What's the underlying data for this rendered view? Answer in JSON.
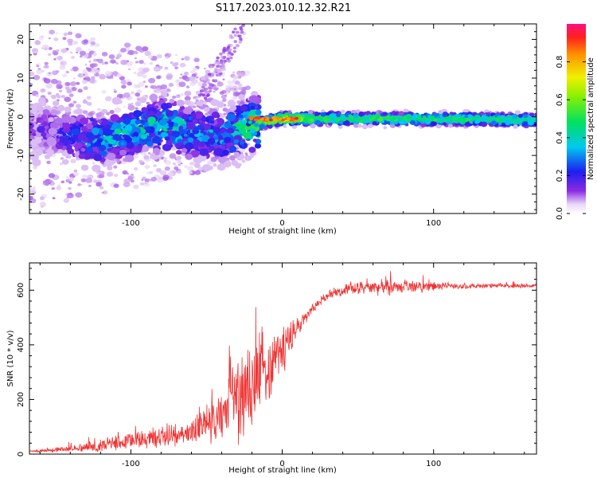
{
  "title": "S117.2023.010.12.32.R21",
  "chart_data": [
    {
      "type": "heatmap",
      "xlabel": "Height of straight line (km)",
      "ylabel": "Frequency (Hz)",
      "xlim": [
        -167,
        168
      ],
      "ylim": [
        -25,
        24
      ],
      "xticks": [
        -100,
        0,
        100
      ],
      "xtick_labels": [
        "-100",
        "0",
        "100"
      ],
      "yticks": [
        -20,
        -10,
        0,
        10,
        20
      ],
      "ytick_labels": [
        "-20",
        "-10",
        "0",
        "10",
        "20"
      ],
      "colorbar": {
        "label": "Normalized spectral amplitude",
        "range": [
          0,
          1
        ],
        "ticks": [
          0.0,
          0.2,
          0.4,
          0.6,
          0.8
        ],
        "tick_labels": [
          "0.0",
          "0.2",
          "0.4",
          "0.6",
          "0.8"
        ],
        "colormap": "rainbow (purple-blue-cyan-green-yellow-red-magenta)"
      },
      "description_points": {
        "x": [
          -160,
          -140,
          -120,
          -100,
          -80,
          -60,
          -40,
          -20,
          0,
          20,
          40,
          60,
          80,
          100,
          120,
          140,
          160
        ],
        "peak_frequency": [
          -3,
          -5,
          -6,
          -4,
          -2,
          -4,
          -5,
          -2,
          -0.5,
          -0.5,
          -0.5,
          -0.5,
          -0.6,
          -0.6,
          -0.6,
          -0.7,
          -0.8
        ],
        "peak_amplitude": [
          0.12,
          0.2,
          0.3,
          0.35,
          0.38,
          0.3,
          0.3,
          0.45,
          0.7,
          0.55,
          0.5,
          0.5,
          0.5,
          0.48,
          0.48,
          0.47,
          0.47
        ]
      },
      "grid": false
    },
    {
      "type": "line",
      "xlabel": "Height of straight line (km)",
      "ylabel": "SNR (10 * v/v)",
      "xlim": [
        -167,
        168
      ],
      "ylim": [
        0,
        700
      ],
      "xticks": [
        -100,
        0,
        100
      ],
      "xtick_labels": [
        "-100",
        "0",
        "100"
      ],
      "yticks": [
        0,
        200,
        400,
        600
      ],
      "ytick_labels": [
        "0",
        "200",
        "400",
        "600"
      ],
      "series": [
        {
          "color": "#ee3333",
          "x": [
            -167,
            -150,
            -130,
            -110,
            -90,
            -70,
            -60,
            -50,
            -45,
            -40,
            -35,
            -30,
            -25,
            -20,
            -15,
            -10,
            -5,
            0,
            5,
            10,
            15,
            20,
            25,
            30,
            35,
            40,
            45,
            50,
            60,
            70,
            80,
            90,
            100,
            110,
            120,
            130,
            140,
            150,
            160,
            168
          ],
          "y": [
            10,
            15,
            25,
            40,
            55,
            70,
            85,
            110,
            130,
            150,
            170,
            200,
            230,
            260,
            290,
            320,
            350,
            380,
            420,
            460,
            500,
            530,
            560,
            580,
            595,
            600,
            605,
            608,
            610,
            612,
            612,
            613,
            614,
            615,
            615,
            615,
            616,
            616,
            616,
            617
          ],
          "noise": [
            5,
            10,
            20,
            30,
            40,
            50,
            60,
            80,
            100,
            130,
            150,
            180,
            200,
            210,
            200,
            170,
            140,
            110,
            80,
            50,
            30,
            25,
            20,
            15,
            20,
            25,
            25,
            25,
            30,
            35,
            30,
            25,
            20,
            12,
            12,
            10,
            10,
            10,
            10,
            10
          ]
        }
      ],
      "grid": false
    }
  ]
}
